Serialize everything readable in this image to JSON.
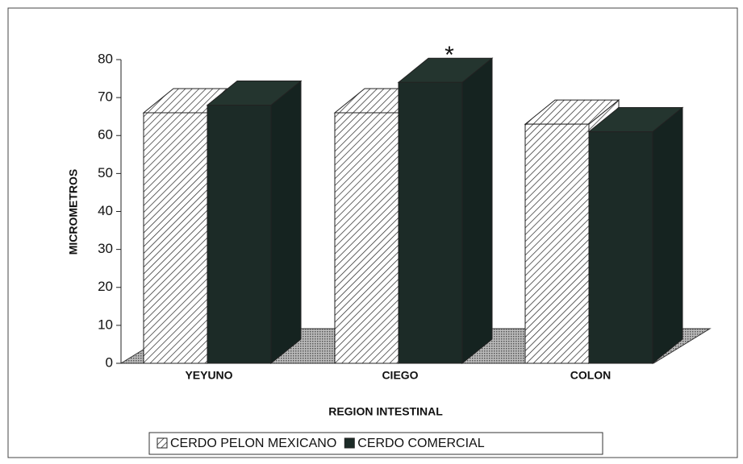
{
  "chart_data": {
    "type": "bar3d",
    "categories": [
      "YEYUNO",
      "CIEGO",
      "COLON"
    ],
    "series": [
      {
        "name": "CERDO PELON MEXICANO",
        "color": "#ffffff",
        "values": [
          66,
          66,
          63
        ]
      },
      {
        "name": "CERDO COMERCIAL",
        "color": "#1c2b27",
        "values": [
          68,
          74,
          61
        ]
      }
    ],
    "ylabel": "MICROMETROS",
    "xlabel": "REGION INTESTINAL",
    "annotation": "*",
    "ylim": [
      0,
      80
    ],
    "yticks": [
      0,
      10,
      20,
      30,
      40,
      50,
      60,
      70,
      80
    ],
    "legend": "bottom"
  }
}
